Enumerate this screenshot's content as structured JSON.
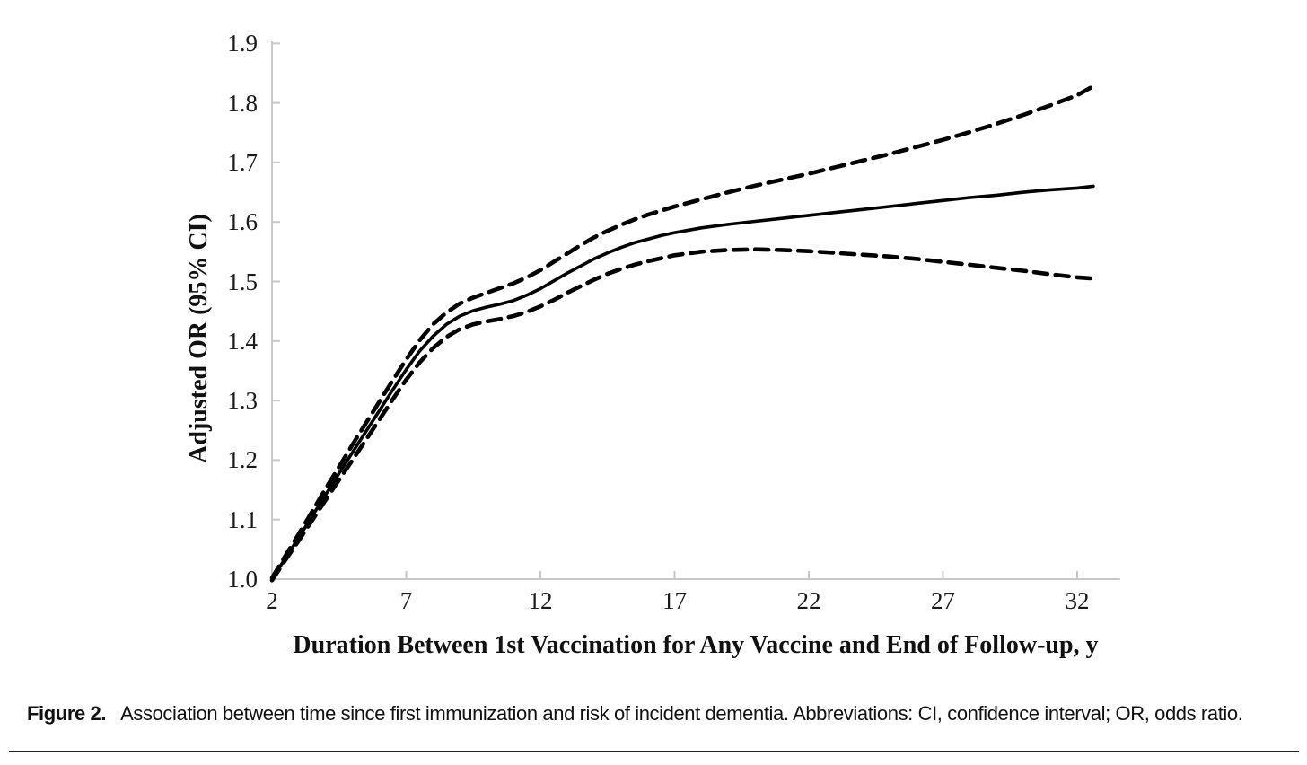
{
  "figure": {
    "caption_label": "Figure 2.",
    "caption_text": "Association between time since first immunization and risk of incident dementia. Abbreviations: CI, confidence interval; OR, odds ratio."
  },
  "colors": {
    "curve": "#000000",
    "axis": "#c8c8c8",
    "text": "#111111",
    "rule": "#1f1f1f",
    "background": "#ffffff"
  },
  "chart_data": {
    "type": "line",
    "title": "",
    "xlabel": "Duration Between 1st Vaccination for Any Vaccine and End of Follow-up, y",
    "ylabel": "Adjusted OR (95% CI)",
    "xlim": [
      2,
      33.6
    ],
    "ylim": [
      1.0,
      1.9
    ],
    "x_ticks": [
      2,
      7,
      12,
      17,
      22,
      27,
      32
    ],
    "y_ticks": [
      "1.0",
      "1.1",
      "1.2",
      "1.3",
      "1.4",
      "1.5",
      "1.6",
      "1.7",
      "1.8",
      "1.9"
    ],
    "grid": false,
    "legend": "none",
    "series": [
      {
        "name": "adjusted-or",
        "label": "Adjusted OR (point estimate)",
        "style": "solid",
        "color": "#000000",
        "points": [
          [
            2,
            1.0
          ],
          [
            2.5,
            1.035
          ],
          [
            3,
            1.07
          ],
          [
            3.5,
            1.106
          ],
          [
            4,
            1.142
          ],
          [
            4.5,
            1.178
          ],
          [
            5,
            1.213
          ],
          [
            5.5,
            1.248
          ],
          [
            6,
            1.283
          ],
          [
            6.5,
            1.318
          ],
          [
            7,
            1.352
          ],
          [
            7.5,
            1.383
          ],
          [
            8,
            1.408
          ],
          [
            8.5,
            1.428
          ],
          [
            9,
            1.442
          ],
          [
            9.5,
            1.451
          ],
          [
            10,
            1.457
          ],
          [
            10.5,
            1.462
          ],
          [
            11,
            1.468
          ],
          [
            11.5,
            1.477
          ],
          [
            12,
            1.488
          ],
          [
            12.5,
            1.501
          ],
          [
            13,
            1.514
          ],
          [
            13.5,
            1.526
          ],
          [
            14,
            1.538
          ],
          [
            14.5,
            1.548
          ],
          [
            15,
            1.557
          ],
          [
            15.5,
            1.565
          ],
          [
            16,
            1.571
          ],
          [
            16.5,
            1.577
          ],
          [
            17,
            1.582
          ],
          [
            18,
            1.59
          ],
          [
            19,
            1.596
          ],
          [
            20,
            1.601
          ],
          [
            21,
            1.606
          ],
          [
            22,
            1.611
          ],
          [
            23,
            1.616
          ],
          [
            24,
            1.621
          ],
          [
            25,
            1.626
          ],
          [
            26,
            1.631
          ],
          [
            27,
            1.636
          ],
          [
            28,
            1.641
          ],
          [
            29,
            1.645
          ],
          [
            30,
            1.65
          ],
          [
            31,
            1.654
          ],
          [
            32,
            1.657
          ],
          [
            32.6,
            1.66
          ]
        ]
      },
      {
        "name": "ci-upper",
        "label": "95% CI upper bound",
        "style": "dashed",
        "color": "#000000",
        "points": [
          [
            2,
            1.002
          ],
          [
            2.5,
            1.039
          ],
          [
            3,
            1.076
          ],
          [
            3.5,
            1.114
          ],
          [
            4,
            1.152
          ],
          [
            4.5,
            1.189
          ],
          [
            5,
            1.226
          ],
          [
            5.5,
            1.262
          ],
          [
            6,
            1.298
          ],
          [
            6.5,
            1.334
          ],
          [
            7,
            1.369
          ],
          [
            7.5,
            1.401
          ],
          [
            8,
            1.428
          ],
          [
            8.5,
            1.448
          ],
          [
            9,
            1.463
          ],
          [
            9.5,
            1.473
          ],
          [
            10,
            1.481
          ],
          [
            10.5,
            1.489
          ],
          [
            11,
            1.497
          ],
          [
            11.5,
            1.507
          ],
          [
            12,
            1.519
          ],
          [
            12.5,
            1.533
          ],
          [
            13,
            1.547
          ],
          [
            13.5,
            1.561
          ],
          [
            14,
            1.574
          ],
          [
            14.5,
            1.585
          ],
          [
            15,
            1.595
          ],
          [
            15.5,
            1.604
          ],
          [
            16,
            1.612
          ],
          [
            16.5,
            1.619
          ],
          [
            17,
            1.626
          ],
          [
            18,
            1.638
          ],
          [
            19,
            1.65
          ],
          [
            20,
            1.661
          ],
          [
            21,
            1.671
          ],
          [
            22,
            1.681
          ],
          [
            23,
            1.692
          ],
          [
            24,
            1.703
          ],
          [
            25,
            1.714
          ],
          [
            26,
            1.726
          ],
          [
            27,
            1.738
          ],
          [
            28,
            1.751
          ],
          [
            29,
            1.765
          ],
          [
            30,
            1.78
          ],
          [
            31,
            1.796
          ],
          [
            32,
            1.813
          ],
          [
            32.6,
            1.828
          ]
        ]
      },
      {
        "name": "ci-lower",
        "label": "95% CI lower bound",
        "style": "dashed",
        "color": "#000000",
        "points": [
          [
            2,
            0.998
          ],
          [
            2.5,
            1.032
          ],
          [
            3,
            1.065
          ],
          [
            3.5,
            1.099
          ],
          [
            4,
            1.133
          ],
          [
            4.5,
            1.167
          ],
          [
            5,
            1.2
          ],
          [
            5.5,
            1.234
          ],
          [
            6,
            1.268
          ],
          [
            6.5,
            1.302
          ],
          [
            7,
            1.335
          ],
          [
            7.5,
            1.364
          ],
          [
            8,
            1.388
          ],
          [
            8.5,
            1.407
          ],
          [
            9,
            1.42
          ],
          [
            9.5,
            1.428
          ],
          [
            10,
            1.433
          ],
          [
            10.5,
            1.437
          ],
          [
            11,
            1.442
          ],
          [
            11.5,
            1.449
          ],
          [
            12,
            1.458
          ],
          [
            12.5,
            1.469
          ],
          [
            13,
            1.481
          ],
          [
            13.5,
            1.492
          ],
          [
            14,
            1.503
          ],
          [
            14.5,
            1.513
          ],
          [
            15,
            1.521
          ],
          [
            15.5,
            1.528
          ],
          [
            16,
            1.534
          ],
          [
            16.5,
            1.539
          ],
          [
            17,
            1.544
          ],
          [
            18,
            1.55
          ],
          [
            19,
            1.553
          ],
          [
            20,
            1.554
          ],
          [
            21,
            1.553
          ],
          [
            22,
            1.551
          ],
          [
            23,
            1.548
          ],
          [
            24,
            1.545
          ],
          [
            25,
            1.542
          ],
          [
            26,
            1.538
          ],
          [
            27,
            1.533
          ],
          [
            28,
            1.528
          ],
          [
            29,
            1.523
          ],
          [
            30,
            1.518
          ],
          [
            31,
            1.512
          ],
          [
            32,
            1.507
          ],
          [
            32.6,
            1.505
          ]
        ]
      }
    ]
  }
}
